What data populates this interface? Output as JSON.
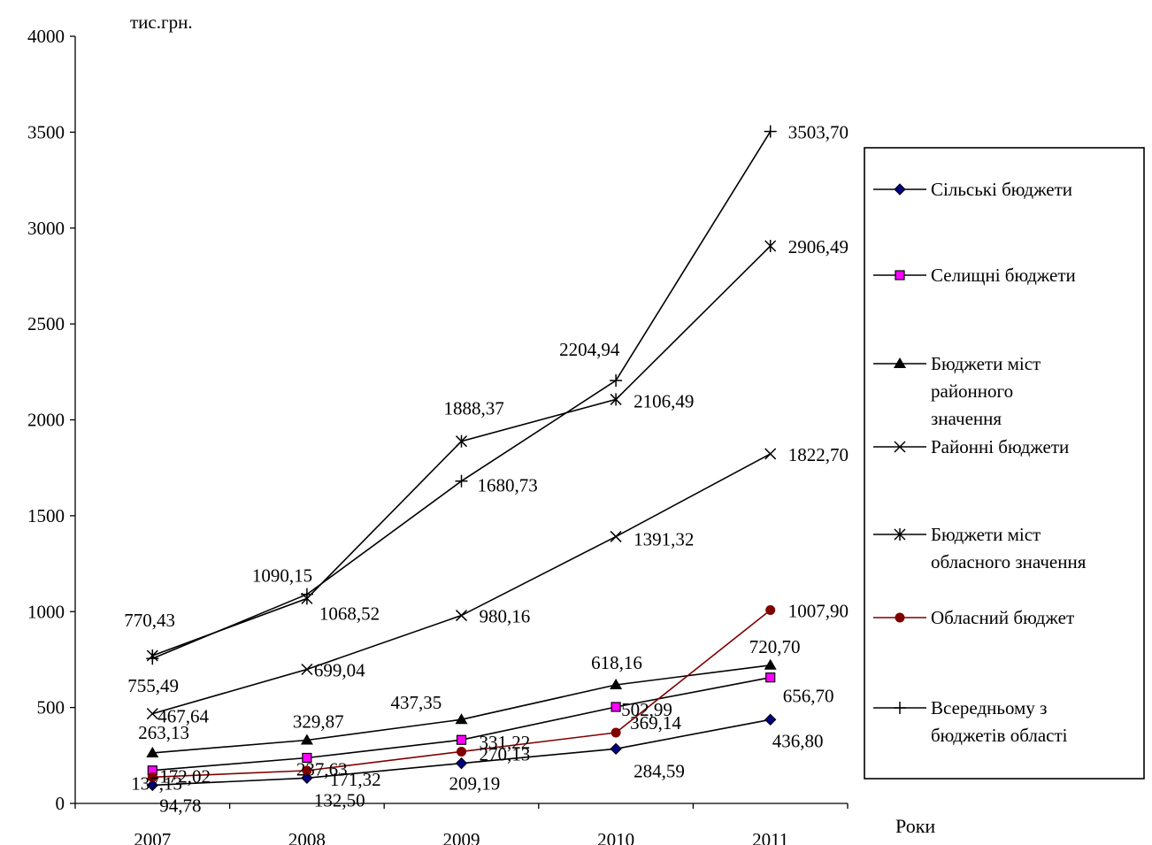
{
  "chart_data": {
    "type": "line",
    "ylabel": "тис.грн.",
    "xlabel": "Роки",
    "ylim": [
      0,
      4000
    ],
    "yticks": [
      "0",
      "500",
      "1000",
      "1500",
      "2000",
      "2500",
      "3000",
      "3500",
      "4000"
    ],
    "categories": [
      "2007",
      "2008",
      "2009",
      "2010",
      "2011"
    ],
    "legend_position": "right",
    "series": [
      {
        "name": "Сільські бюджети",
        "marker": "diamond",
        "color": "#000080",
        "line": "#000000",
        "values": [
          94.78,
          132.5,
          209.19,
          284.59,
          436.8
        ],
        "labels": [
          "94,78",
          "132,50",
          "209,19",
          "284,59",
          "436,80"
        ]
      },
      {
        "name": "Селищні бюджети",
        "marker": "square",
        "color": "#ff00ff",
        "line": "#000000",
        "values": [
          172.02,
          237.63,
          331.22,
          502.99,
          656.7
        ],
        "labels": [
          "172,02",
          "237,63",
          "331,22",
          "502,99",
          "656,70"
        ]
      },
      {
        "name": "Бюджети міст районного значення",
        "marker": "triangle",
        "color": "#000000",
        "line": "#000000",
        "values": [
          263.13,
          329.87,
          437.35,
          618.16,
          720.7
        ],
        "labels": [
          "263,13",
          "329,87",
          "437,35",
          "618,16",
          "720,70"
        ]
      },
      {
        "name": "Районні бюджети",
        "marker": "x",
        "color": "#000000",
        "line": "#000000",
        "values": [
          467.64,
          699.04,
          980.16,
          1391.32,
          1822.7
        ],
        "labels": [
          "467,64",
          "699,04",
          "980,16",
          "1391,32",
          "1822,70"
        ]
      },
      {
        "name": "Бюджети міст обласного значення",
        "marker": "star",
        "color": "#000000",
        "line": "#000000",
        "values": [
          770.43,
          1068.52,
          1888.37,
          2106.49,
          2906.49
        ],
        "labels": [
          "770,43",
          "1068,52",
          "1888,37",
          "2106,49",
          "2906,49"
        ]
      },
      {
        "name": "Обласний бюджет",
        "marker": "circle",
        "color": "#800000",
        "line": "#800000",
        "values": [
          137.13,
          171.32,
          270.13,
          369.14,
          1007.9
        ],
        "labels": [
          "137,13",
          "171,32",
          "270,13",
          "369,14",
          "1007,90"
        ]
      },
      {
        "name": "Всередньому з бюджетів області",
        "marker": "plus",
        "color": "#000000",
        "line": "#000000",
        "values": [
          755.49,
          1090.15,
          1680.73,
          2204.94,
          3503.7
        ],
        "labels": [
          "755,49",
          "1090,15",
          "1680,73",
          "2204,94",
          "3503,70"
        ]
      }
    ],
    "legend_lines": [
      [
        "Сільські бюджети"
      ],
      [
        "Селищні бюджети"
      ],
      [
        "Бюджети міст",
        "районного",
        "значення"
      ],
      [
        "Районні бюджети"
      ],
      [
        "Бюджети міст",
        "обласного значення"
      ],
      [
        "Обласний бюджет"
      ],
      [
        "Всередньому з",
        "бюджетів області"
      ]
    ]
  }
}
